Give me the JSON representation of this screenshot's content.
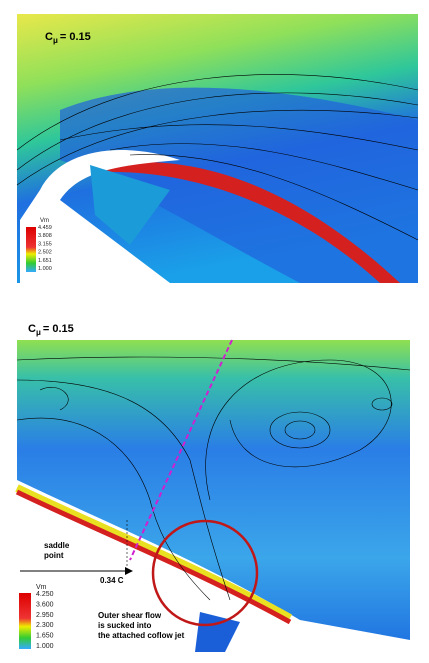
{
  "panels": [
    {
      "label": {
        "main": "C",
        "sub": "μ",
        "rest": "= 0.15"
      },
      "legend": {
        "title": "Vm",
        "ticks": [
          "4.459",
          "3.808",
          "3.155",
          "2.502",
          "1.651",
          "1.000"
        ]
      }
    },
    {
      "label": {
        "main": "C",
        "sub": "μ",
        "rest": "= 0.15"
      },
      "legend": {
        "title": "Vm",
        "ticks": [
          "4.250",
          "3.600",
          "2.950",
          "2.300",
          "1.650",
          "1.000"
        ]
      },
      "annotations": {
        "saddle": "saddle point",
        "chord": "0.34 C",
        "shear": "Outer shear flow is sucked into the attached coflow jet"
      }
    }
  ]
}
